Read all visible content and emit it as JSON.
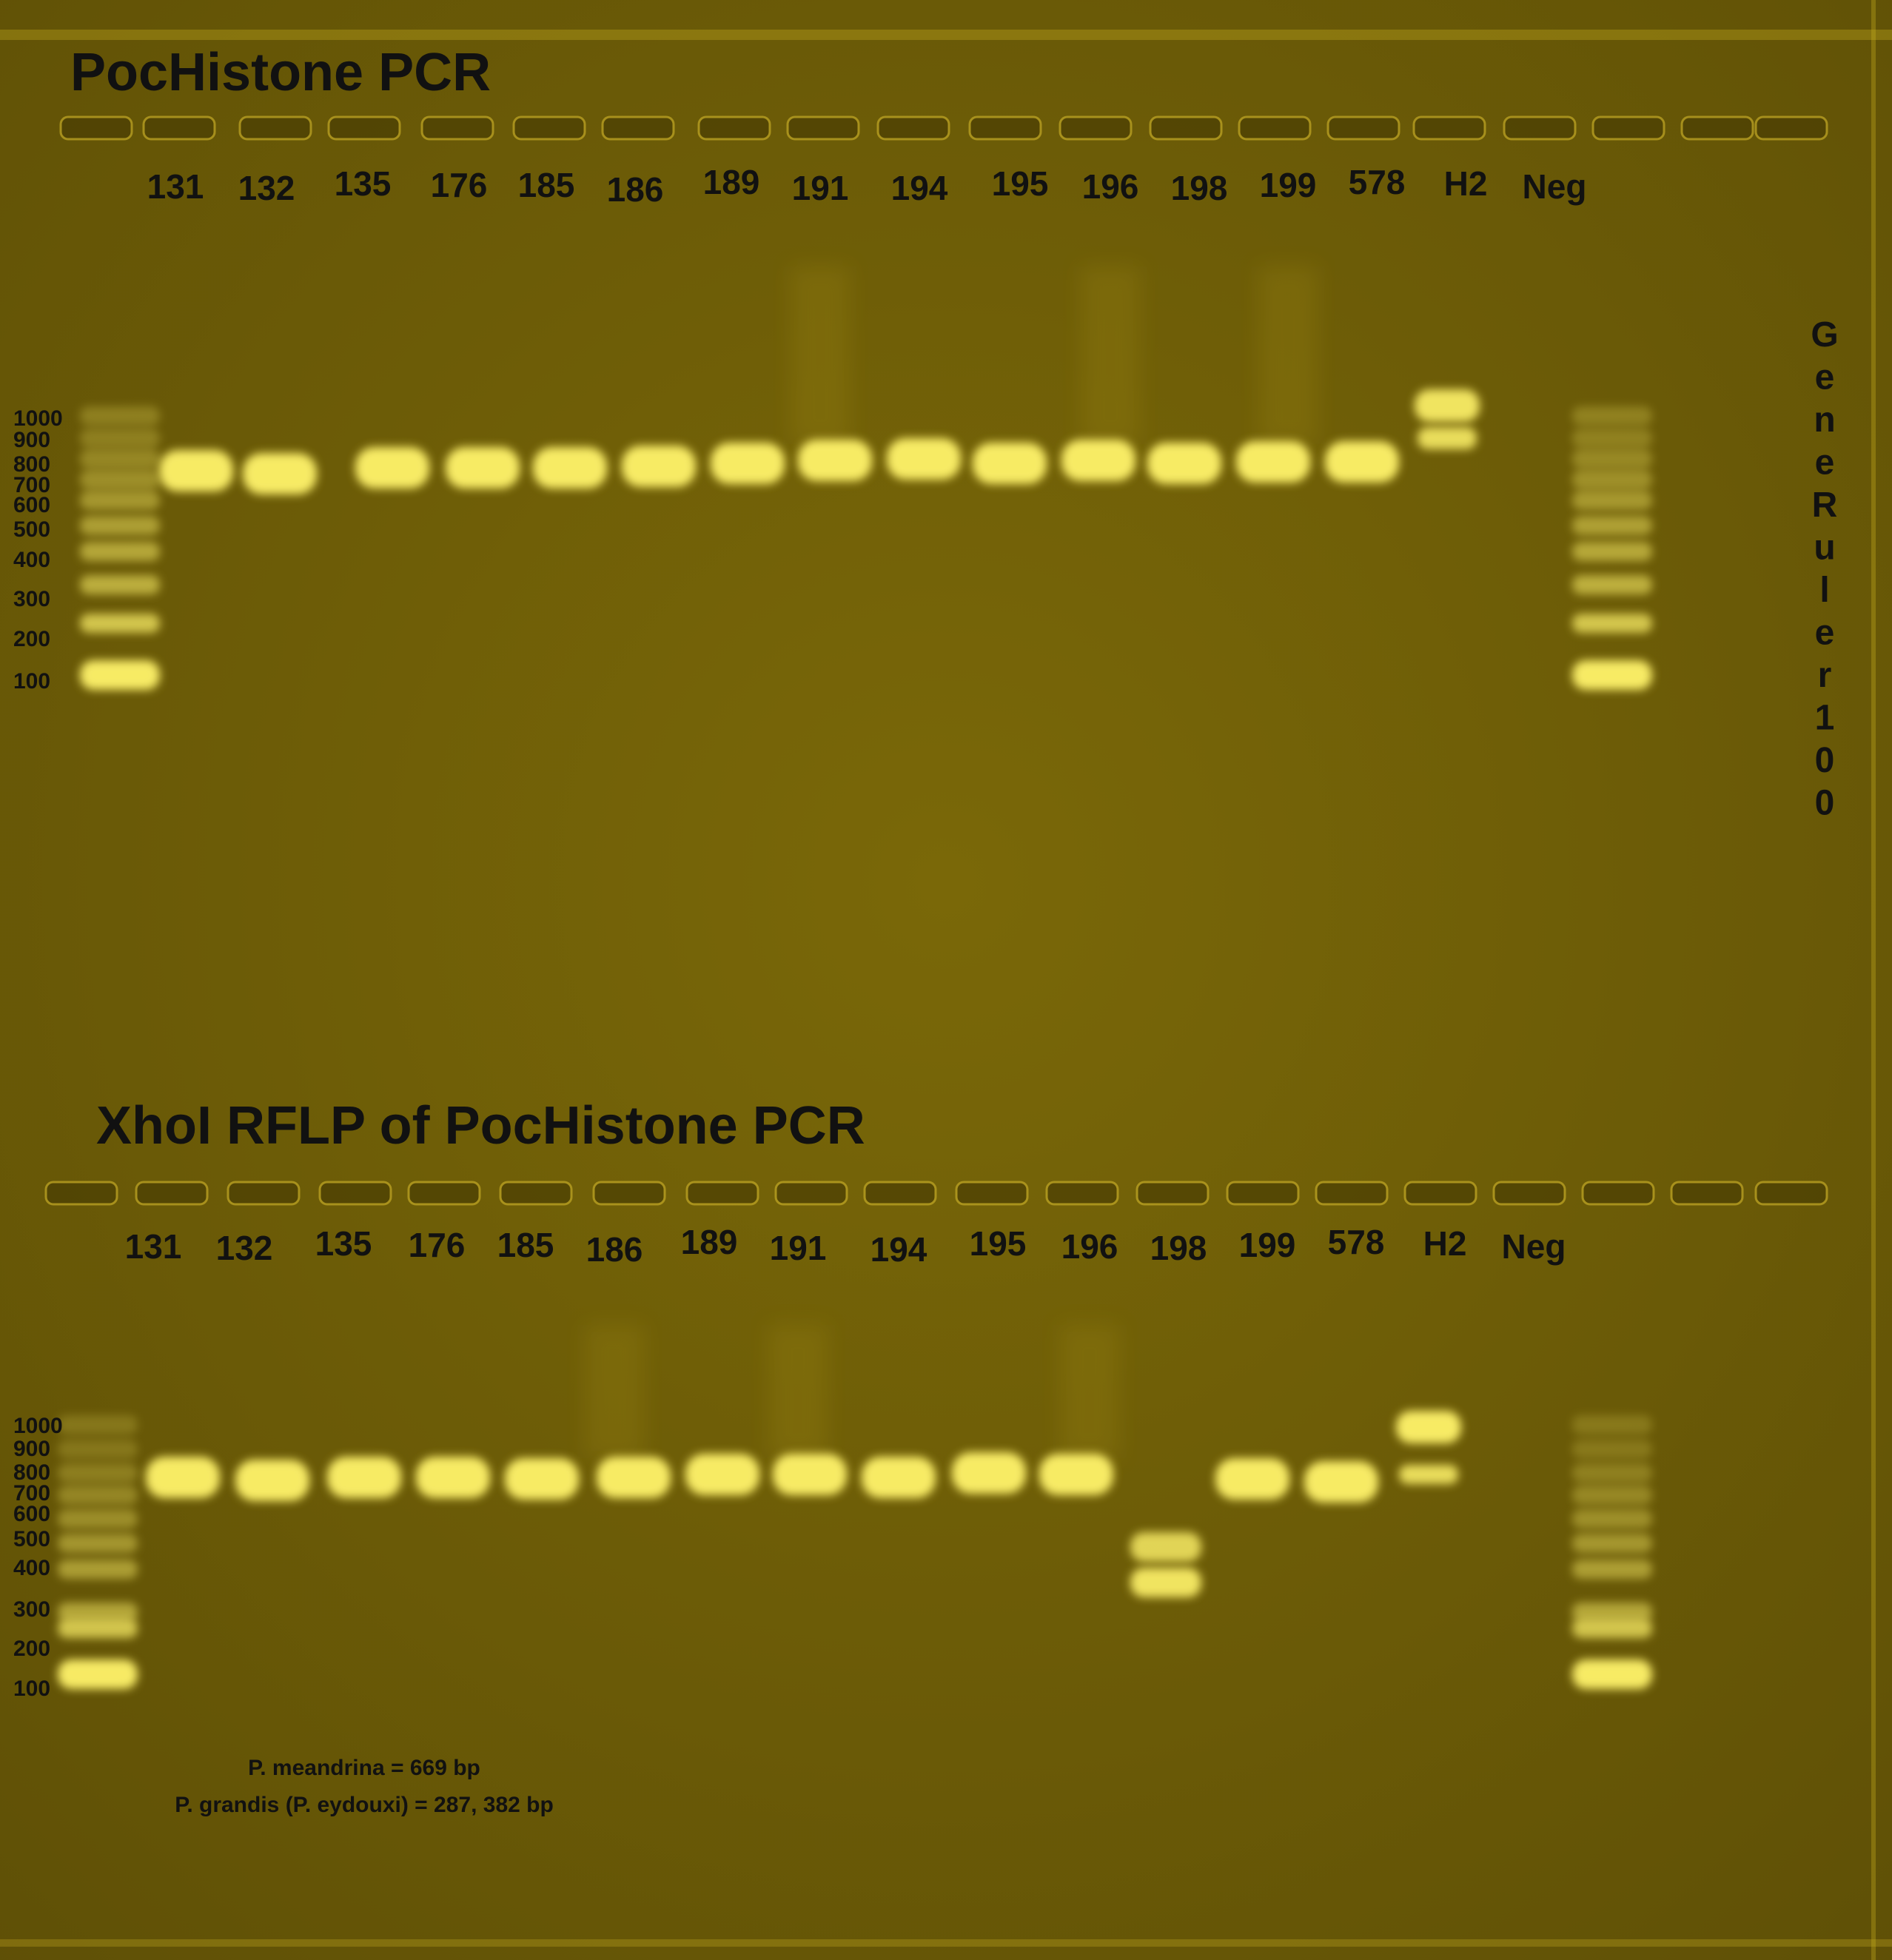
{
  "top_gel": {
    "title": "PocHistone PCR",
    "lanes": [
      "131",
      "132",
      "135",
      "176",
      "185",
      "186",
      "189",
      "191",
      "194",
      "195",
      "196",
      "198",
      "199",
      "578",
      "H2",
      "Neg"
    ]
  },
  "bottom_gel": {
    "title": "XhoI RFLP of PocHistone PCR",
    "lanes": [
      "131",
      "132",
      "135",
      "176",
      "185",
      "186",
      "189",
      "191",
      "194",
      "195",
      "196",
      "198",
      "199",
      "578",
      "H2",
      "Neg"
    ]
  },
  "ladder": {
    "name_letters": [
      "G",
      "e",
      "n",
      "e",
      "R",
      "u",
      "l",
      "e",
      "r",
      "1",
      "0",
      "0"
    ],
    "sizes": [
      "1000",
      "900",
      "800",
      "700",
      "600",
      "500",
      "400",
      "300",
      "200",
      "100"
    ]
  },
  "legend": {
    "line1": "P. meandrina = 669 bp",
    "line2": "P. grandis (P. eydouxi) = 287, 382 bp"
  },
  "colors": {
    "gel": "#6e5d08",
    "band": "#fff36a",
    "text": "#111111"
  }
}
